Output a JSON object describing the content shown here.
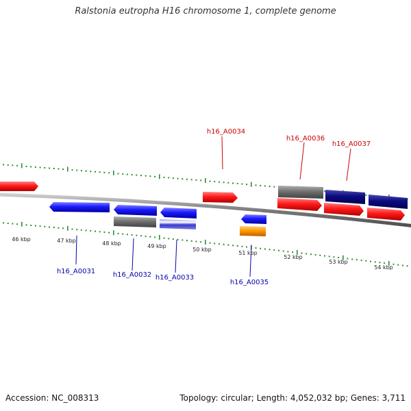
{
  "title": "Ralstonia eutropha H16 chromosome 1, complete genome",
  "footer": {
    "accession": "Accession: NC_008313",
    "topology": "Topology: circular; Length: 4,052,032 bp; Genes: 3,711"
  },
  "colors": {
    "backbone": "#8c8c8c",
    "tick": "#2e8b2e",
    "red_feature": "#ff1a1a",
    "blue_feature": "#1a1aff",
    "navy_feature": "#0b0b80",
    "gray_feature": "#707070",
    "orange_feature": "#ff9900",
    "label_top": "#cc0000",
    "label_bottom": "#0000aa"
  },
  "kbp_labels": [
    "46 kbp",
    "47 kbp",
    "48 kbp",
    "49 kbp",
    "50 kbp",
    "51 kbp",
    "52 kbp",
    "53 kbp",
    "54 kbp"
  ],
  "gene_labels_top": [
    "h16_A0034",
    "h16_A0036",
    "h16_A0037"
  ],
  "gene_labels_bottom": [
    "h16_A0031",
    "h16_A0032",
    "h16_A0033",
    "h16_A0035"
  ]
}
